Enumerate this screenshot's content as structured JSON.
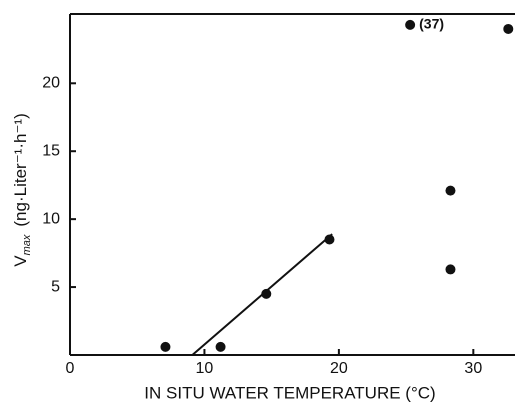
{
  "chart_data": {
    "type": "scatter",
    "xlabel": "IN SITU WATER TEMPERATURE (°C)",
    "ylabel": {
      "symbol": "V",
      "subscript": "max",
      "units": "(ng·Liter⁻¹·h⁻¹)"
    },
    "xlim": [
      0,
      33.1
    ],
    "ylim": [
      0,
      25.1
    ],
    "xticks": [
      0,
      10,
      20,
      30
    ],
    "yticks": [
      5,
      10,
      15,
      20
    ],
    "series": [
      {
        "mode": "markers",
        "color": "#111111",
        "x": [
          7.1,
          11.2,
          14.6,
          19.3,
          28.3,
          28.3,
          25.3,
          32.6
        ],
        "values": [
          0.6,
          0.6,
          4.5,
          8.5,
          12.1,
          6.3,
          24.3,
          24.0
        ],
        "point_labels": [
          null,
          null,
          null,
          null,
          null,
          null,
          "(37)",
          null
        ]
      },
      {
        "mode": "line",
        "color": "#111111",
        "x": [
          9.1,
          19.5
        ],
        "values": [
          0,
          8.9
        ]
      }
    ]
  }
}
